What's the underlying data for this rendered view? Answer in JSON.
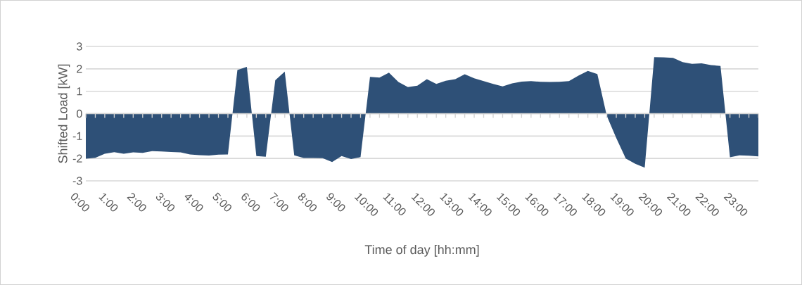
{
  "chart_data": {
    "type": "area",
    "xlabel": "Time of day [hh:mm]",
    "ylabel": "Shifted Load [kW]",
    "categories": [
      "0:00",
      null,
      null,
      "1:00",
      null,
      null,
      "2:00",
      null,
      null,
      "3:00",
      null,
      null,
      "4:00",
      null,
      null,
      "5:00",
      null,
      null,
      "6:00",
      null,
      null,
      "7:00",
      null,
      null,
      "8:00",
      null,
      null,
      "9:00",
      null,
      null,
      "10:00",
      null,
      null,
      "11:00",
      null,
      null,
      "12:00",
      null,
      null,
      "13:00",
      null,
      null,
      "14:00",
      null,
      null,
      "15:00",
      null,
      null,
      "16:00",
      null,
      null,
      "17:00",
      null,
      null,
      "18:00",
      null,
      null,
      "19:00",
      null,
      null,
      "20:00",
      null,
      null,
      "21:00",
      null,
      null,
      "22:00",
      null,
      null,
      "23:00",
      null,
      null
    ],
    "values": [
      -2.01,
      -1.97,
      -1.79,
      -1.72,
      -1.79,
      -1.73,
      -1.75,
      -1.67,
      -1.69,
      -1.71,
      -1.73,
      -1.82,
      -1.85,
      -1.87,
      -1.83,
      -1.82,
      1.95,
      2.09,
      -1.89,
      -1.92,
      1.49,
      1.88,
      -1.86,
      -1.98,
      -1.98,
      -1.99,
      -2.16,
      -1.89,
      -2.03,
      -1.94,
      1.64,
      1.61,
      1.83,
      1.41,
      1.19,
      1.25,
      1.54,
      1.33,
      1.47,
      1.54,
      1.76,
      1.58,
      1.45,
      1.33,
      1.22,
      1.35,
      1.43,
      1.45,
      1.42,
      1.41,
      1.42,
      1.45,
      1.7,
      1.91,
      1.77,
      -0.1,
      -1.09,
      -2.0,
      -2.24,
      -2.41,
      2.52,
      2.51,
      2.49,
      2.3,
      2.22,
      2.25,
      2.17,
      2.13,
      -1.95,
      -1.86,
      -1.88,
      -1.91
    ],
    "color": "#2e5077",
    "ylim": [
      -3,
      3
    ],
    "yticks": [
      -3,
      -2,
      -1,
      0,
      1,
      2,
      3
    ],
    "grid": "y"
  }
}
